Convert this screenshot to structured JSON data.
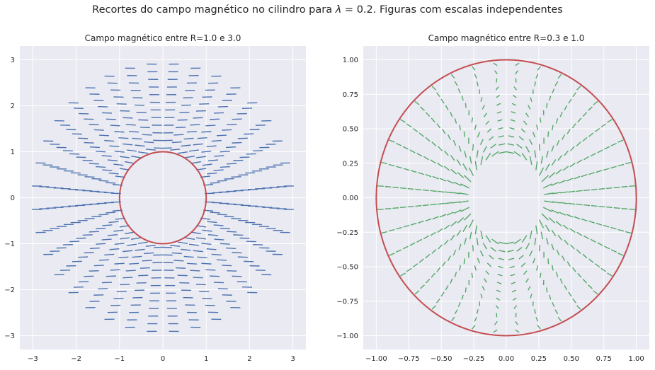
{
  "suptitle": {
    "prefix": "Recortes do campo magnético no cilindro para ",
    "lambda_symbol": "λ",
    "lambda_value": " = 0.2",
    "suffix": ". Figuras com escalas independentes"
  },
  "colors": {
    "background": "#eaeaf2",
    "grid": "#ffffff",
    "text": "#262626",
    "circle": "#c44e52",
    "arrows_left": "#4c72b0",
    "arrows_right": "#55a868"
  },
  "chart_data": [
    {
      "type": "quiver",
      "title": "Campo magnético entre R=1.0 e 3.0",
      "xlim": [
        -3.3,
        3.3
      ],
      "ylim": [
        -3.3,
        3.3
      ],
      "xticks": [
        -3,
        -2,
        -1,
        0,
        1,
        2,
        3
      ],
      "yticks": [
        -3,
        -2,
        -1,
        0,
        1,
        2,
        3
      ],
      "xtick_labels": [
        "−3",
        "−2",
        "−1",
        "0",
        "1",
        "2",
        "3"
      ],
      "ytick_labels": [
        "−3",
        "−2",
        "−1",
        "0",
        "1",
        "2",
        "3"
      ],
      "grid": true,
      "region": {
        "r_min": 1.0,
        "r_max": 3.0
      },
      "circle_radius": 1.0,
      "field": "uniform field to the right, perturbed near the cylinder"
    },
    {
      "type": "quiver",
      "title": "Campo magnético entre R=0.3 e 1.0",
      "xlim": [
        -1.1,
        1.1
      ],
      "ylim": [
        -1.1,
        1.1
      ],
      "xticks": [
        -1.0,
        -0.75,
        -0.5,
        -0.25,
        0.0,
        0.25,
        0.5,
        0.75,
        1.0
      ],
      "yticks": [
        -1.0,
        -0.75,
        -0.5,
        -0.25,
        0.0,
        0.25,
        0.5,
        0.75,
        1.0
      ],
      "xtick_labels": [
        "−1.00",
        "−0.75",
        "−0.50",
        "−0.25",
        "0.00",
        "0.25",
        "0.50",
        "0.75",
        "1.00"
      ],
      "ytick_labels": [
        "−1.00",
        "−0.75",
        "−0.50",
        "−0.25",
        "0.00",
        "0.25",
        "0.50",
        "0.75",
        "1.00"
      ],
      "grid": true,
      "region": {
        "r_min": 0.3,
        "r_max": 1.0
      },
      "circle_radius": 1.0,
      "field": "dipole-like field inside the cylinder wall"
    }
  ]
}
